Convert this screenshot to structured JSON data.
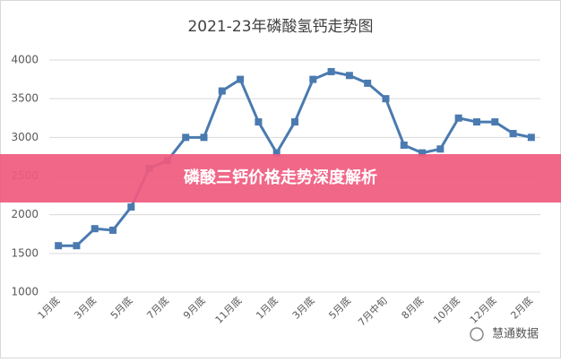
{
  "chart_data": {
    "type": "line",
    "title": "2021-23年磷酸氢钙走势图",
    "categories": [
      "1月底",
      null,
      "3月底",
      null,
      "5月底",
      null,
      "7月底",
      null,
      "9月底",
      null,
      "11月底",
      null,
      "1月底",
      null,
      "3月底",
      null,
      "5月底",
      null,
      "7月中旬",
      null,
      "8月底",
      null,
      "10月底",
      null,
      "12月底",
      null,
      "2月底"
    ],
    "series": [
      {
        "name": "磷酸氢钙",
        "color": "#4a7ab0",
        "values": [
          1600,
          1600,
          1820,
          1800,
          2100,
          2600,
          2700,
          3000,
          3000,
          3600,
          3750,
          3200,
          2800,
          3200,
          3750,
          3850,
          3800,
          3700,
          3500,
          2900,
          2800,
          2850,
          3250,
          3200,
          3200,
          3050,
          3000
        ]
      }
    ],
    "ylim": [
      1000,
      4000
    ],
    "yticks": [
      1000,
      1500,
      2000,
      2500,
      3000,
      3500,
      4000
    ],
    "grid": true
  },
  "banner": "磷酸三钙价格走势深度解析",
  "watermark": "慧通数据"
}
